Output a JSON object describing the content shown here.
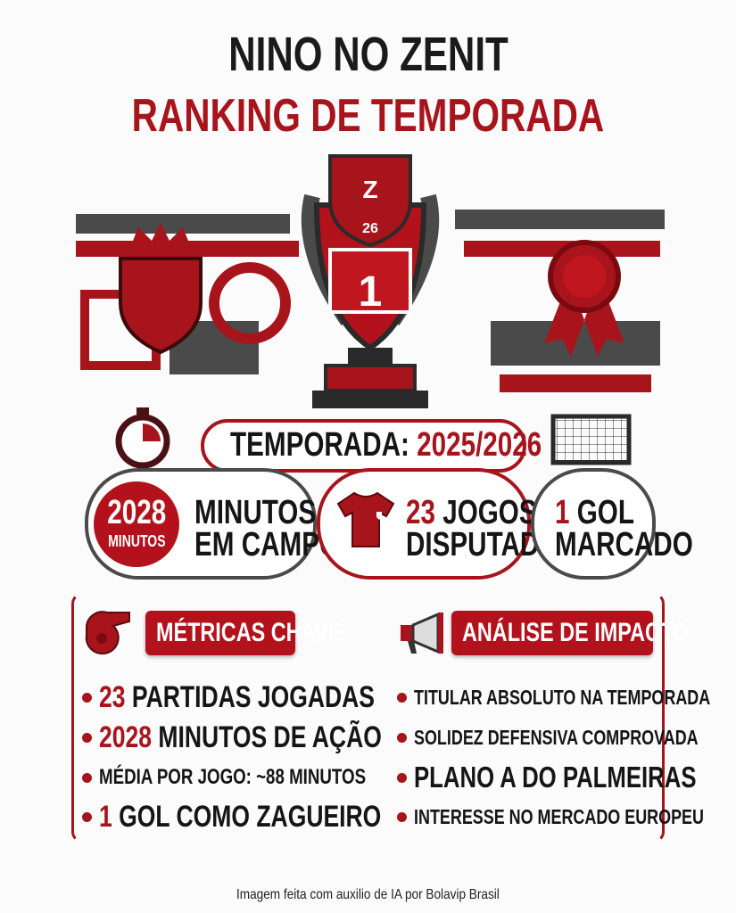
{
  "header": {
    "title": "NINO NO ZENIT",
    "subtitle": "RANKING DE TEMPORADA"
  },
  "trophy": {
    "shield_letter": "Z",
    "shield_number": "26",
    "rank": "1"
  },
  "season": {
    "label": "TEMPORADA:",
    "value": "2025/2026"
  },
  "stats": [
    {
      "badge_value": "2028",
      "badge_unit": "MINUTOS",
      "line1": "MINUTOS",
      "line2": "EM CAMPO",
      "icon": "stopwatch-icon"
    },
    {
      "value": "23",
      "line1": "JOGOS",
      "line2": "DISPUTADOS",
      "icon": "jersey-icon"
    },
    {
      "value": "1",
      "line1": "GOL",
      "line2": "MARCADO",
      "icon": "goal-net-icon"
    }
  ],
  "metrics": {
    "title": "MÉTRICAS CHAVE",
    "icon": "whistle-icon",
    "items": [
      {
        "num": "23",
        "text": "PARTIDAS JOGADAS"
      },
      {
        "num": "2028",
        "text": "MINUTOS DE AÇÃO"
      },
      {
        "num": "",
        "text": "MÉDIA POR JOGO: ~88 MINUTOS"
      },
      {
        "num": "1",
        "text": "GOL COMO ZAGUEIRO"
      }
    ]
  },
  "impact": {
    "title": "ANÁLISE DE IMPACTO",
    "icon": "megaphone-icon",
    "items": [
      "TITULAR ABSOLUTO NA TEMPORADA",
      "SOLIDEZ DEFENSIVA COMPROVADA",
      "PLANO A DO PALMEIRAS",
      "INTERESSE NO MERCADO EUROPEU"
    ]
  },
  "footer": "Imagem feita com auxilio de IA por Bolavip Brasil",
  "colors": {
    "accent": "#a8141c",
    "dark": "#1a1a1a",
    "gray": "#4a4a4a"
  }
}
